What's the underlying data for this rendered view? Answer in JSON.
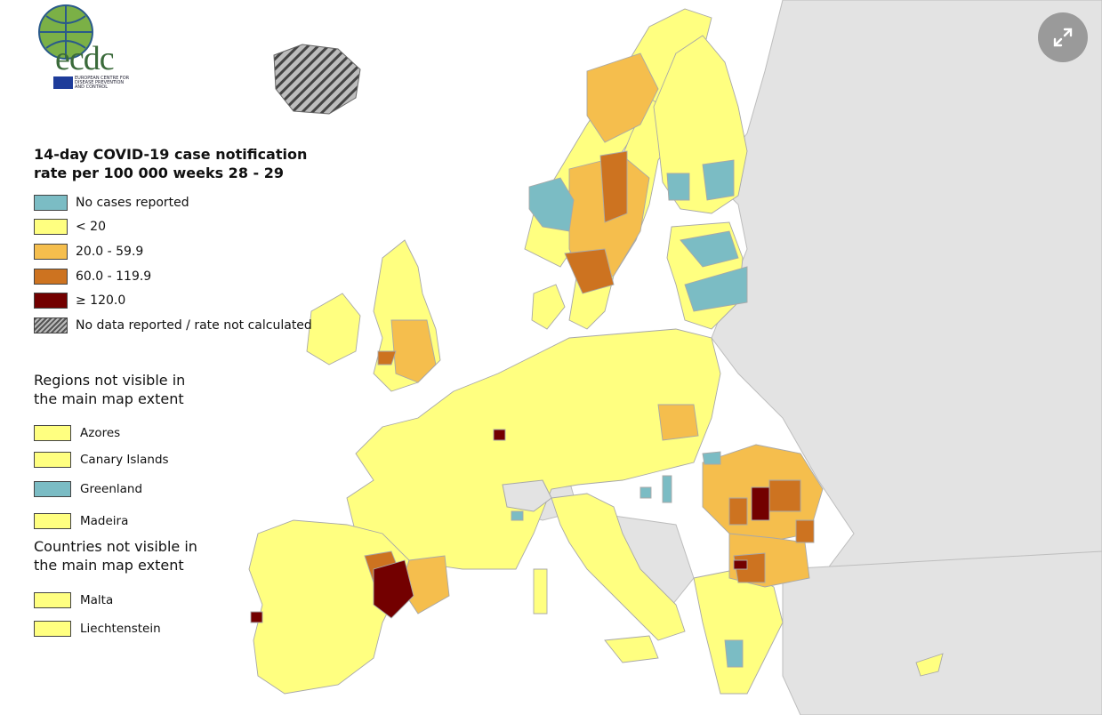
{
  "logo": {
    "wordmark": "ecdc",
    "subtitle_lines": [
      "EUROPEAN CENTRE FOR",
      "DISEASE PREVENTION",
      "AND CONTROL"
    ]
  },
  "legend": {
    "title": "14-day COVID-19 case notification rate per 100 000 weeks 28 - 29",
    "items": [
      {
        "label": "No cases reported",
        "color": "#7bbcc4"
      },
      {
        "label": "< 20",
        "color": "#ffff80"
      },
      {
        "label": "20.0 - 59.9",
        "color": "#f5be4d"
      },
      {
        "label": "60.0 - 119.9",
        "color": "#cd7320"
      },
      {
        "label": "≥ 120.0",
        "color": "#730000"
      },
      {
        "label": "No data reported / rate not calculated",
        "pattern": "hatched"
      }
    ]
  },
  "regions_not_visible": {
    "title": "Regions not visible in the main map extent",
    "items": [
      {
        "label": "Azores",
        "color": "#ffff80"
      },
      {
        "label": "Canary Islands",
        "color": "#ffff80"
      },
      {
        "label": "Greenland",
        "color": "#7bbcc4"
      },
      {
        "label": "Madeira",
        "color": "#ffff80"
      }
    ]
  },
  "countries_not_visible": {
    "title": "Countries not visible in the main map extent",
    "items": [
      {
        "label": "Malta",
        "color": "#ffff80"
      },
      {
        "label": "Liechtenstein",
        "color": "#ffff80"
      }
    ]
  },
  "map_colors": {
    "sea": "#ffffff",
    "non_eu_land": "#e3e3e3",
    "border": "#9a9a9a"
  },
  "expand_button": {
    "icon": "expand-icon"
  }
}
